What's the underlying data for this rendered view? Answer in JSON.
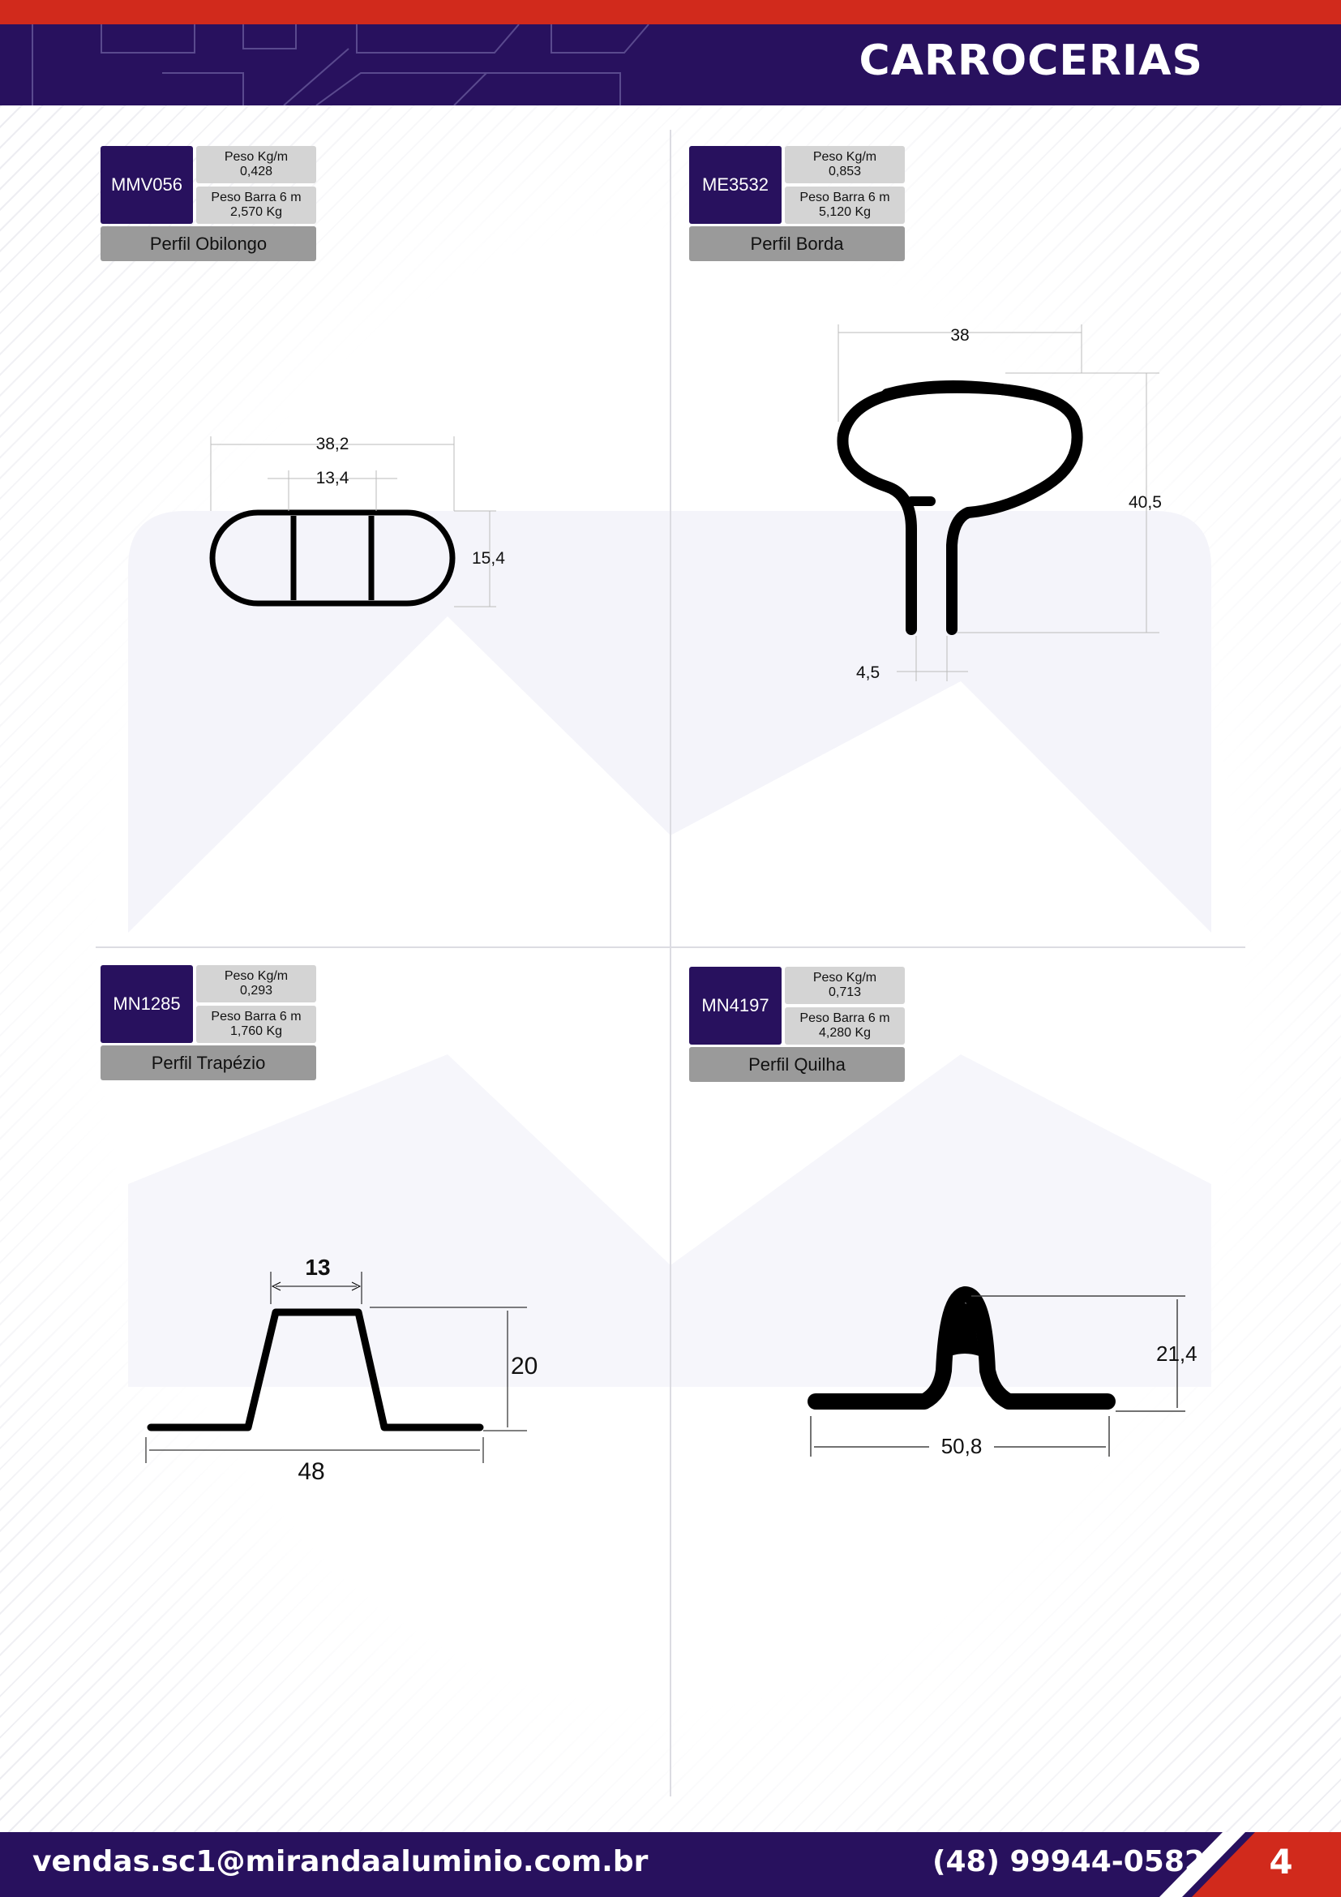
{
  "header": {
    "title": "CARROCERIAS",
    "accent_color": "#d12a1c",
    "band_color": "#28115e"
  },
  "products": [
    {
      "code": "MMV056",
      "weight_label": "Peso Kg/m",
      "weight_value": "0,428",
      "bar_label": "Peso Barra 6 m",
      "bar_value": "2,570 Kg",
      "name": "Perfil Obilongo",
      "dims": {
        "width": "38,2",
        "inner": "13,4",
        "height": "15,4"
      }
    },
    {
      "code": "ME3532",
      "weight_label": "Peso Kg/m",
      "weight_value": "0,853",
      "bar_label": "Peso Barra 6 m",
      "bar_value": "5,120 Kg",
      "name": "Perfil Borda",
      "dims": {
        "width": "38",
        "height": "40,5",
        "gap": "4,5"
      }
    },
    {
      "code": "MN1285",
      "weight_label": "Peso Kg/m",
      "weight_value": "0,293",
      "bar_label": "Peso Barra 6 m",
      "bar_value": "1,760 Kg",
      "name": "Perfil Trapézio",
      "dims": {
        "top": "13",
        "height": "20",
        "width": "48"
      }
    },
    {
      "code": "MN4197",
      "weight_label": "Peso Kg/m",
      "weight_value": "0,713",
      "bar_label": "Peso Barra 6 m",
      "bar_value": "4,280 Kg",
      "name": "Perfil Quilha",
      "dims": {
        "height": "21,4",
        "width": "50,8"
      }
    }
  ],
  "footer": {
    "email": "vendas.sc1@mirandaaluminio.com.br",
    "phone": "(48) 99944-0582",
    "page": "4"
  }
}
